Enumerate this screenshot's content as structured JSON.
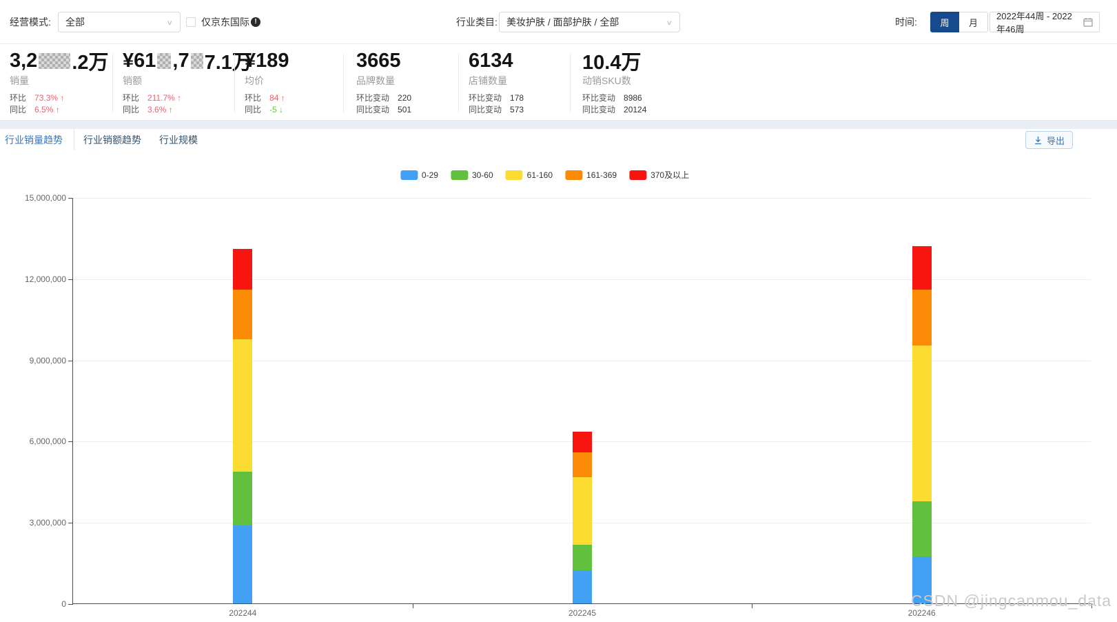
{
  "filters": {
    "business_mode_label": "经营模式:",
    "business_mode_value": "全部",
    "jd_intl_checkbox": "仅京东国际",
    "category_label": "行业类目:",
    "category_value": "美妆护肤 / 面部护肤 / 全部",
    "time_label": "时间:",
    "time_week": "周",
    "time_month": "月",
    "time_range": "2022年44周 - 2022年46周"
  },
  "kpis": [
    {
      "value_parts": [
        {
          "text": "3,2"
        },
        {
          "mosaic_width": 46
        },
        {
          "text": ".2万"
        }
      ],
      "label": "销量",
      "rows": [
        {
          "key": "环比",
          "value": "73.3%",
          "dir": "up"
        },
        {
          "key": "同比",
          "value": "6.5%",
          "dir": "up"
        }
      ]
    },
    {
      "value_parts": [
        {
          "text": "¥61"
        },
        {
          "mosaic_width": 20
        },
        {
          "text": ",7"
        },
        {
          "mosaic_width": 18
        },
        {
          "text": "7.1万"
        }
      ],
      "label": "销额",
      "rows": [
        {
          "key": "环比",
          "value": "211.7%",
          "dir": "up"
        },
        {
          "key": "同比",
          "value": "3.6%",
          "dir": "up"
        }
      ]
    },
    {
      "value_parts": [
        {
          "text": "¥189"
        }
      ],
      "label": "均价",
      "rows": [
        {
          "key": "环比",
          "value": "84",
          "dir": "up"
        },
        {
          "key": "同比",
          "value": "-5",
          "dir": "down"
        }
      ]
    },
    {
      "value_parts": [
        {
          "text": "3665"
        }
      ],
      "label": "品牌数量",
      "rows": [
        {
          "key": "环比变动",
          "value": "220"
        },
        {
          "key": "同比变动",
          "value": "501"
        }
      ]
    },
    {
      "value_parts": [
        {
          "text": "6134"
        }
      ],
      "label": "店铺数量",
      "rows": [
        {
          "key": "环比变动",
          "value": "178"
        },
        {
          "key": "同比变动",
          "value": "573"
        }
      ]
    },
    {
      "value_parts": [
        {
          "text": "10.4万"
        }
      ],
      "label": "动销SKU数",
      "rows": [
        {
          "key": "环比变动",
          "value": "8986"
        },
        {
          "key": "同比变动",
          "value": "20124"
        }
      ]
    }
  ],
  "tabs": [
    {
      "label": "行业销量趋势",
      "active": true
    },
    {
      "label": "行业销额趋势",
      "active": false
    },
    {
      "label": "行业规模",
      "active": false
    }
  ],
  "export_label": "导出",
  "watermark": "CSDN @jingcanmou_data",
  "colors": {
    "accent_blue": "#17498D",
    "link_blue": "#3E74B5",
    "up_red": "#F25E68",
    "down_green": "#67C23A"
  },
  "chart_data": {
    "type": "bar",
    "stacked": true,
    "title": "",
    "xlabel": "",
    "ylabel": "",
    "categories": [
      "202244",
      "202245",
      "202246"
    ],
    "series": [
      {
        "name": "0-29",
        "color": "#42A0F5",
        "values": [
          2880000,
          1220000,
          1720000
        ]
      },
      {
        "name": "30-60",
        "color": "#61C13E",
        "values": [
          1980000,
          950000,
          2040000
        ]
      },
      {
        "name": "61-160",
        "color": "#FDDC32",
        "values": [
          4890000,
          2490000,
          5760000
        ]
      },
      {
        "name": "161-369",
        "color": "#FB8A07",
        "values": [
          1850000,
          930000,
          2080000
        ]
      },
      {
        "name": "370及以上",
        "color": "#F9150F",
        "values": [
          1500000,
          740000,
          1590000
        ]
      }
    ],
    "ylim": [
      0,
      15000000
    ],
    "yticks": [
      0,
      3000000,
      6000000,
      9000000,
      12000000,
      15000000
    ],
    "legend_position": "top",
    "grid": true
  }
}
